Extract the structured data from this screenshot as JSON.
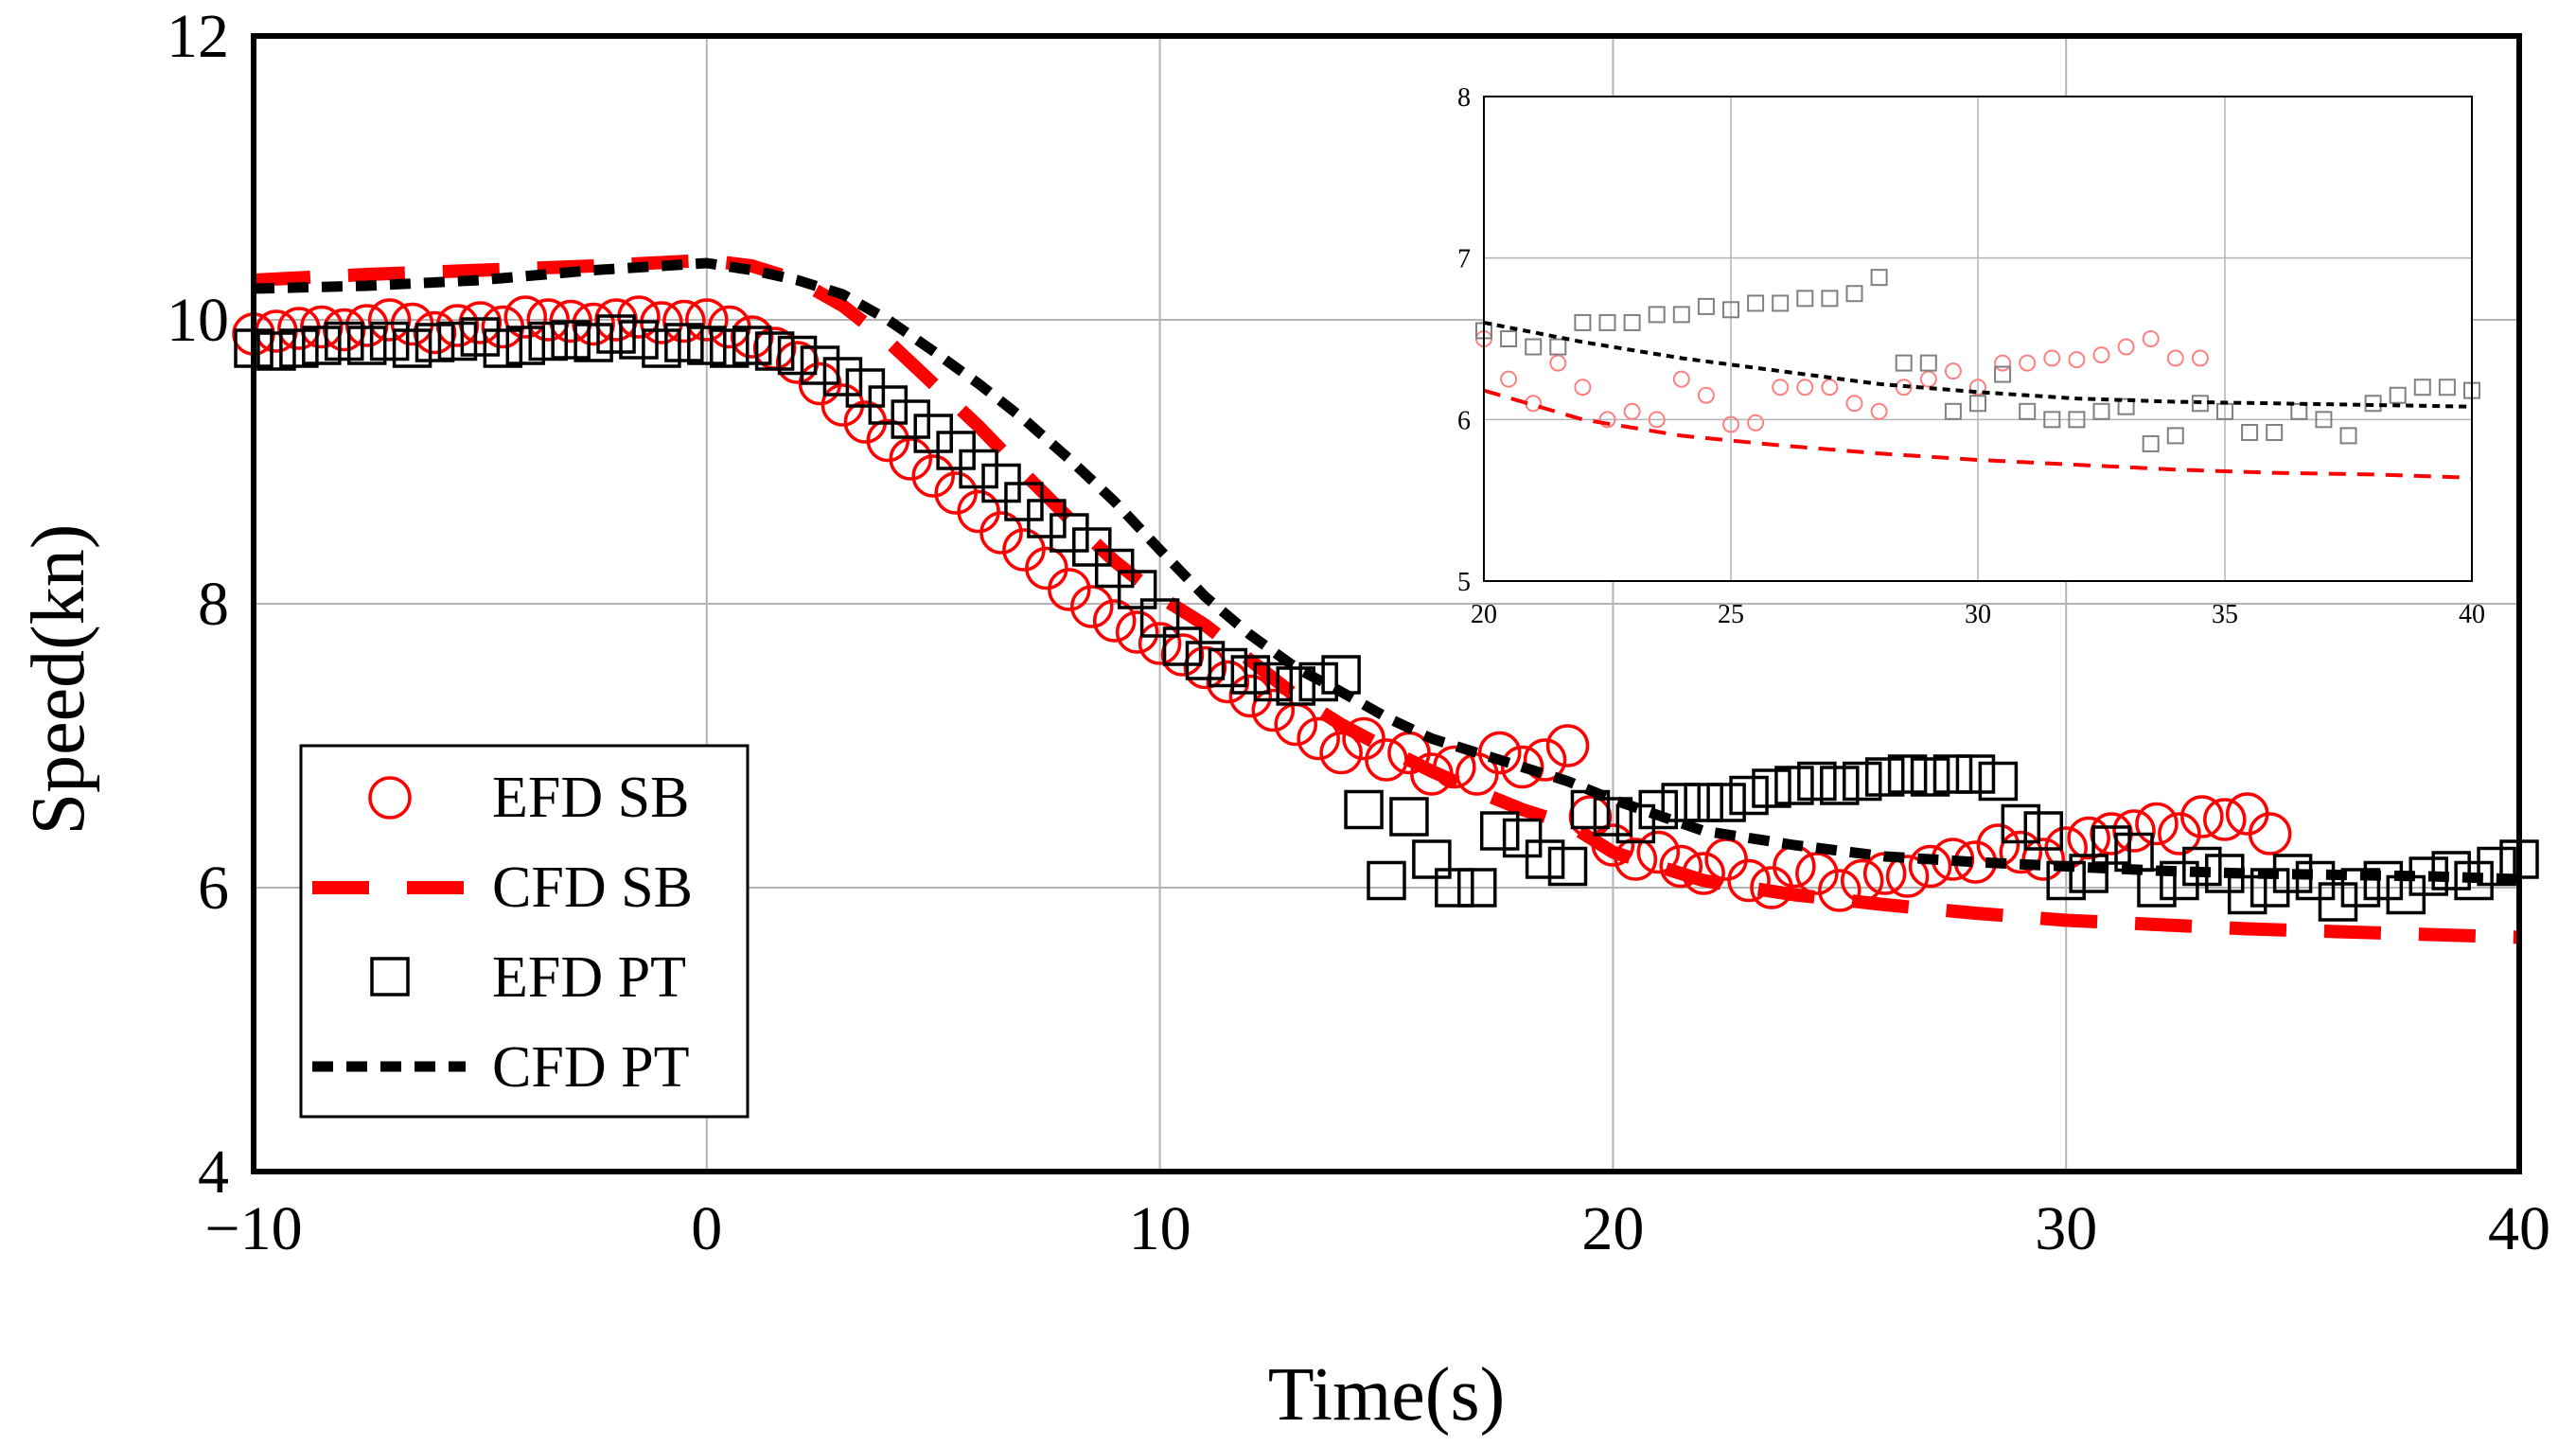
{
  "chart_data": {
    "type": "line",
    "title": "",
    "xlabel": "Time(s)",
    "ylabel": "Speed(kn)",
    "xlim": [
      -10,
      40
    ],
    "ylim": [
      4,
      12
    ],
    "xticks": [
      "−10",
      "0",
      "10",
      "20",
      "30",
      "40"
    ],
    "yticks": [
      "4",
      "6",
      "8",
      "10",
      "12"
    ],
    "grid": true,
    "legend": {
      "position": "lower-left",
      "entries": [
        "EFD SB",
        "CFD SB",
        "EFD PT",
        "CFD PT"
      ]
    },
    "colors": {
      "sb": "#ff0000",
      "pt": "#000000",
      "grid": "#b4b4b4"
    },
    "series": [
      {
        "name": "EFD SB",
        "style": "open-circle",
        "color": "#ff0000",
        "x": [
          -10,
          -9.5,
          -9,
          -8.5,
          -8,
          -7.5,
          -7,
          -6.5,
          -6,
          -5.5,
          -5,
          -4.5,
          -4,
          -3.5,
          -3,
          -2.5,
          -2,
          -1.5,
          -1,
          -0.5,
          0,
          0.5,
          1,
          1.5,
          2,
          2.5,
          3,
          3.5,
          4,
          4.5,
          5,
          5.5,
          6,
          6.5,
          7,
          7.5,
          8,
          8.5,
          9,
          9.5,
          10,
          10.5,
          11,
          11.5,
          12,
          12.5,
          13,
          13.5,
          14,
          14.5,
          15,
          15.5,
          16,
          16.5,
          17,
          17.5,
          18,
          18.5,
          19,
          19.5,
          20,
          20.5,
          21,
          21.5,
          22,
          22.5,
          23,
          23.5,
          24,
          24.5,
          25,
          25.5,
          26,
          26.5,
          27,
          27.5,
          28,
          28.5,
          29,
          29.5,
          30,
          30.5,
          31,
          31.5,
          32,
          32.5,
          33,
          33.5,
          34,
          34.5
        ],
        "values": [
          9.9,
          9.92,
          9.94,
          9.95,
          9.93,
          9.96,
          10.0,
          9.97,
          9.91,
          9.96,
          9.98,
          9.95,
          10.02,
          10.0,
          9.99,
          9.97,
          10.0,
          10.02,
          9.98,
          9.99,
          10.0,
          9.95,
          9.88,
          9.8,
          9.7,
          9.55,
          9.4,
          9.28,
          9.15,
          9.02,
          8.9,
          8.78,
          8.65,
          8.5,
          8.38,
          8.25,
          8.1,
          7.98,
          7.88,
          7.8,
          7.72,
          7.64,
          7.55,
          7.45,
          7.35,
          7.25,
          7.15,
          7.05,
          6.95,
          7.05,
          6.9,
          6.95,
          6.8,
          6.85,
          6.8,
          6.95,
          6.85,
          6.9,
          7.0,
          6.5,
          6.3,
          6.2,
          6.25,
          6.15,
          6.1,
          6.2,
          6.05,
          6.0,
          6.15,
          6.1,
          5.98,
          6.05,
          6.1,
          6.08,
          6.15,
          6.2,
          6.18,
          6.3,
          6.25,
          6.2,
          6.28,
          6.35,
          6.38,
          6.4,
          6.45,
          6.38,
          6.5,
          6.48,
          6.52,
          6.38
        ]
      },
      {
        "name": "CFD SB",
        "style": "long-dash",
        "color": "#ff0000",
        "x": [
          -10,
          -7.5,
          -5,
          -2.5,
          0,
          1,
          2,
          3,
          4,
          5,
          6,
          7,
          8,
          9,
          10,
          11,
          12,
          13,
          14,
          15,
          16,
          17,
          18,
          19,
          20,
          22,
          24,
          26,
          28,
          30,
          32,
          34,
          36,
          38,
          40
        ],
        "values": [
          10.28,
          10.32,
          10.35,
          10.38,
          10.42,
          10.38,
          10.28,
          10.1,
          9.85,
          9.55,
          9.25,
          8.92,
          8.6,
          8.3,
          8.05,
          7.85,
          7.6,
          7.35,
          7.15,
          6.98,
          6.82,
          6.68,
          6.55,
          6.45,
          6.25,
          6.05,
          5.95,
          5.88,
          5.82,
          5.77,
          5.74,
          5.71,
          5.69,
          5.67,
          5.65
        ]
      },
      {
        "name": "EFD PT",
        "style": "open-square",
        "color": "#000000",
        "x": [
          -10,
          -9.5,
          -9,
          -8.5,
          -8,
          -7.5,
          -7,
          -6.5,
          -6,
          -5.5,
          -5,
          -4.5,
          -4,
          -3.5,
          -3,
          -2.5,
          -2,
          -1.5,
          -1,
          -0.5,
          0,
          0.5,
          1,
          1.5,
          2,
          2.5,
          3,
          3.5,
          4,
          4.5,
          5,
          5.5,
          6,
          6.5,
          7,
          7.5,
          8,
          8.5,
          9,
          9.5,
          10,
          10.5,
          11,
          11.5,
          12,
          12.5,
          13,
          13.5,
          14,
          14.5,
          15,
          15.5,
          16,
          16.5,
          17,
          17.5,
          18,
          18.5,
          19,
          19.5,
          20,
          20.5,
          21,
          21.5,
          22,
          22.5,
          23,
          23.5,
          24,
          24.5,
          25,
          25.5,
          26,
          26.5,
          27,
          27.5,
          28,
          28.5,
          29,
          29.5,
          30,
          30.5,
          31,
          31.5,
          32,
          32.5,
          33,
          33.5,
          34,
          34.5,
          35,
          35.5,
          36,
          36.5,
          37,
          37.5,
          38,
          38.5,
          39,
          39.5,
          40
        ],
        "values": [
          9.8,
          9.78,
          9.8,
          9.82,
          9.85,
          9.82,
          9.85,
          9.8,
          9.84,
          9.85,
          9.88,
          9.8,
          9.82,
          9.85,
          9.86,
          9.84,
          9.9,
          9.86,
          9.8,
          9.84,
          9.82,
          9.8,
          9.82,
          9.78,
          9.75,
          9.68,
          9.6,
          9.52,
          9.4,
          9.3,
          9.2,
          9.08,
          8.95,
          8.85,
          8.72,
          8.6,
          8.5,
          8.4,
          8.25,
          8.1,
          7.9,
          7.7,
          7.6,
          7.55,
          7.5,
          7.45,
          7.42,
          7.45,
          7.5,
          6.55,
          6.05,
          6.5,
          6.2,
          6.0,
          6.0,
          6.4,
          6.35,
          6.2,
          6.15,
          6.55,
          6.5,
          6.45,
          6.55,
          6.6,
          6.6,
          6.6,
          6.65,
          6.7,
          6.72,
          6.75,
          6.72,
          6.75,
          6.78,
          6.8,
          6.78,
          6.8,
          6.8,
          6.75,
          6.45,
          6.4,
          6.05,
          6.1,
          6.3,
          6.25,
          6.0,
          6.05,
          6.15,
          6.1,
          5.95,
          6.0,
          6.1,
          6.05,
          5.9,
          6.0,
          6.05,
          5.95,
          6.08,
          6.12,
          6.05,
          6.15,
          6.2
        ]
      },
      {
        "name": "CFD PT",
        "style": "short-dash",
        "color": "#000000",
        "x": [
          -10,
          -7.5,
          -5,
          -2.5,
          0,
          1,
          2,
          3,
          4,
          5,
          6,
          7,
          8,
          9,
          10,
          11,
          12,
          13,
          14,
          15,
          16,
          17,
          18,
          19,
          20,
          22,
          24,
          26,
          28,
          30,
          32,
          34,
          36,
          38,
          40
        ],
        "values": [
          10.22,
          10.24,
          10.28,
          10.35,
          10.4,
          10.35,
          10.28,
          10.18,
          10.0,
          9.78,
          9.55,
          9.3,
          9.02,
          8.72,
          8.38,
          8.05,
          7.78,
          7.55,
          7.38,
          7.2,
          7.05,
          6.95,
          6.85,
          6.75,
          6.62,
          6.4,
          6.3,
          6.22,
          6.18,
          6.15,
          6.12,
          6.1,
          6.09,
          6.08,
          6.06
        ]
      }
    ],
    "inset": {
      "xlim": [
        20,
        40
      ],
      "ylim": [
        5,
        8
      ],
      "xticks": [
        "20",
        "25",
        "30",
        "35",
        "40"
      ],
      "yticks": [
        "5",
        "6",
        "7",
        "8"
      ],
      "series": [
        {
          "name": "EFD SB",
          "style": "open-circle",
          "color": "#ff8080",
          "x": [
            20,
            20.5,
            21,
            21.5,
            22,
            22.5,
            23,
            23.5,
            24,
            24.5,
            25,
            25.5,
            26,
            26.5,
            27,
            27.5,
            28,
            28.5,
            29,
            29.5,
            30,
            30.5,
            31,
            31.5,
            32,
            32.5,
            33,
            33.5,
            34,
            34.5
          ],
          "values": [
            6.5,
            6.25,
            6.1,
            6.35,
            6.2,
            6.0,
            6.05,
            6.0,
            6.25,
            6.15,
            5.97,
            5.98,
            6.2,
            6.2,
            6.2,
            6.1,
            6.05,
            6.2,
            6.25,
            6.3,
            6.2,
            6.35,
            6.35,
            6.38,
            6.37,
            6.4,
            6.45,
            6.5,
            6.38,
            6.38
          ]
        },
        {
          "name": "CFD SB",
          "style": "long-dash",
          "color": "#ff0000",
          "x": [
            20,
            22,
            24,
            26,
            28,
            30,
            32,
            34,
            36,
            38,
            40
          ],
          "values": [
            6.18,
            6.0,
            5.9,
            5.84,
            5.79,
            5.75,
            5.72,
            5.69,
            5.67,
            5.66,
            5.64
          ]
        },
        {
          "name": "EFD PT",
          "style": "open-square",
          "color": "#808080",
          "x": [
            20,
            20.5,
            21,
            21.5,
            22,
            22.5,
            23,
            23.5,
            24,
            24.5,
            25,
            25.5,
            26,
            26.5,
            27,
            27.5,
            28,
            28.5,
            29,
            29.5,
            30,
            30.5,
            31,
            31.5,
            32,
            32.5,
            33,
            33.5,
            34,
            34.5,
            35,
            35.5,
            36,
            36.5,
            37,
            37.5,
            38,
            38.5,
            39,
            39.5,
            40
          ],
          "values": [
            6.55,
            6.5,
            6.45,
            6.45,
            6.6,
            6.6,
            6.6,
            6.65,
            6.65,
            6.7,
            6.68,
            6.72,
            6.72,
            6.75,
            6.75,
            6.78,
            6.88,
            6.35,
            6.35,
            6.05,
            6.1,
            6.28,
            6.05,
            6.0,
            6.0,
            6.05,
            6.08,
            5.85,
            5.9,
            6.1,
            6.05,
            5.92,
            5.92,
            6.05,
            6.0,
            5.9,
            6.1,
            6.15,
            6.2,
            6.2,
            6.18
          ]
        },
        {
          "name": "CFD PT",
          "style": "short-dash",
          "color": "#000000",
          "x": [
            20,
            22,
            24,
            26,
            28,
            30,
            32,
            34,
            36,
            38,
            40
          ],
          "values": [
            6.6,
            6.48,
            6.38,
            6.3,
            6.22,
            6.17,
            6.13,
            6.11,
            6.1,
            6.09,
            6.08
          ]
        }
      ]
    }
  }
}
